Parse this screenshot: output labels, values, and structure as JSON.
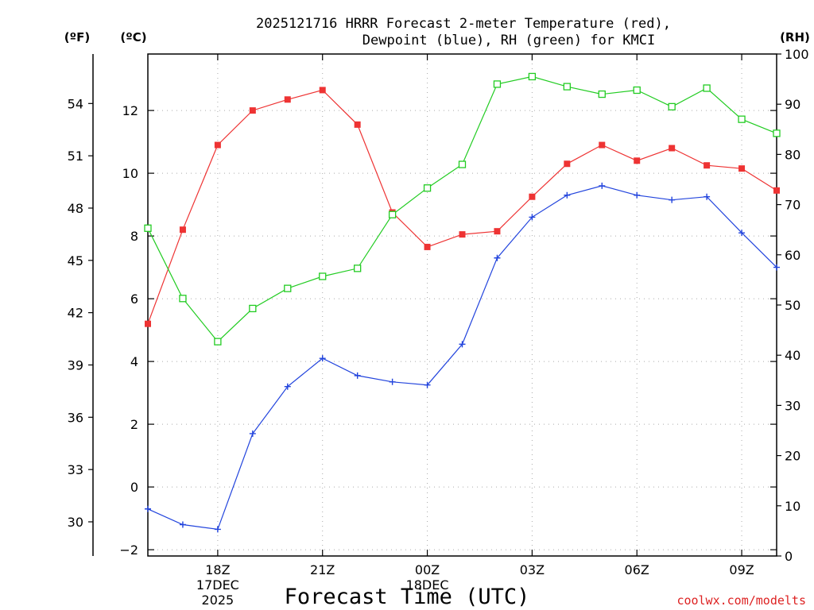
{
  "chart_data": {
    "type": "line",
    "title_line1": "2025121716 HRRR Forecast 2-meter Temperature (red),",
    "title_line2": "Dewpoint (blue), RH (green) for KMCI",
    "left_unit_f": "(ºF)",
    "left_unit_c": "(ºC)",
    "right_unit": "(RH)",
    "xlabel": "Forecast Time (UTC)",
    "credit": "coolwx.com/modelts",
    "x_hours": [
      0,
      1,
      2,
      3,
      4,
      5,
      6,
      7,
      8,
      9,
      10,
      11,
      12,
      13,
      14,
      15,
      16,
      17,
      18
    ],
    "x_ticks": [
      {
        "hour": 2,
        "lines": [
          "18Z",
          "17DEC",
          "2025"
        ]
      },
      {
        "hour": 5,
        "lines": [
          "21Z"
        ]
      },
      {
        "hour": 8,
        "lines": [
          "00Z",
          "18DEC"
        ]
      },
      {
        "hour": 11,
        "lines": [
          "03Z"
        ]
      },
      {
        "hour": 14,
        "lines": [
          "06Z"
        ]
      },
      {
        "hour": 17,
        "lines": [
          "09Z"
        ]
      }
    ],
    "xlim": [
      0,
      18
    ],
    "celsius_axis": {
      "ylim": [
        -2.2,
        13.8
      ],
      "ticks": [
        -2,
        0,
        2,
        4,
        6,
        8,
        10,
        12
      ]
    },
    "fahrenheit_axis": {
      "ylim": [
        28.04,
        56.84
      ],
      "ticks": [
        30,
        33,
        36,
        39,
        42,
        45,
        48,
        51,
        54
      ]
    },
    "rh_axis": {
      "ylim": [
        0,
        100
      ],
      "ticks": [
        0,
        10,
        20,
        30,
        40,
        50,
        60,
        70,
        80,
        90,
        100
      ]
    },
    "series": [
      {
        "name": "Temperature",
        "units": "C",
        "axis": "celsius",
        "color": "#ee3333",
        "marker": "filled-square",
        "values": [
          5.2,
          8.2,
          10.9,
          12.0,
          12.35,
          12.65,
          11.55,
          8.75,
          7.65,
          8.05,
          8.15,
          9.25,
          10.3,
          10.9,
          10.4,
          10.8,
          10.25,
          10.15,
          9.45
        ]
      },
      {
        "name": "Dewpoint",
        "units": "C",
        "axis": "celsius",
        "color": "#2244dd",
        "marker": "plus",
        "values": [
          -0.7,
          -1.2,
          -1.35,
          1.7,
          3.2,
          4.1,
          3.55,
          3.35,
          3.25,
          4.55,
          7.3,
          8.6,
          9.3,
          9.6,
          9.3,
          9.15,
          9.25,
          8.1,
          7.0
        ]
      },
      {
        "name": "RH",
        "units": "%",
        "axis": "rh",
        "color": "#22cc22",
        "marker": "open-square",
        "values": [
          65.3,
          51.3,
          42.7,
          49.3,
          53.3,
          55.7,
          57.3,
          68.0,
          73.3,
          78.0,
          94.0,
          95.5,
          93.5,
          92.0,
          92.8,
          89.5,
          93.2,
          87.0,
          84.2
        ]
      }
    ]
  }
}
